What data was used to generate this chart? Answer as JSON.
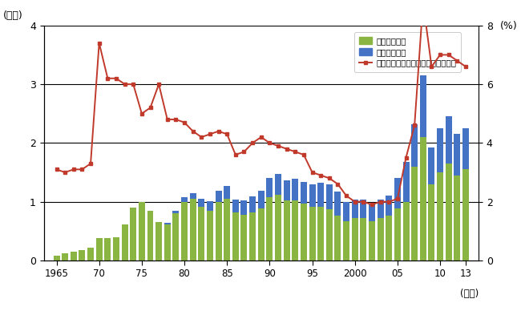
{
  "years": [
    1965,
    1966,
    1967,
    1968,
    1969,
    1970,
    1971,
    1972,
    1973,
    1974,
    1975,
    1976,
    1977,
    1978,
    1979,
    1980,
    1981,
    1982,
    1983,
    1984,
    1985,
    1986,
    1987,
    1988,
    1989,
    1990,
    1991,
    1992,
    1993,
    1994,
    1995,
    1996,
    1997,
    1998,
    1999,
    2000,
    2001,
    2002,
    2003,
    2004,
    2005,
    2006,
    2007,
    2008,
    2009,
    2010,
    2011,
    2012,
    2013
  ],
  "coking_coal": [
    0.08,
    0.12,
    0.15,
    0.18,
    0.22,
    0.38,
    0.38,
    0.4,
    0.62,
    0.9,
    1.0,
    0.85,
    0.65,
    0.62,
    0.8,
    1.0,
    1.05,
    0.92,
    0.85,
    1.0,
    1.05,
    0.82,
    0.78,
    0.82,
    0.88,
    1.08,
    1.12,
    1.02,
    1.02,
    0.97,
    0.92,
    0.92,
    0.87,
    0.77,
    0.67,
    0.72,
    0.72,
    0.67,
    0.72,
    0.77,
    0.88,
    1.0,
    1.6,
    2.1,
    1.3,
    1.5,
    1.65,
    1.45,
    1.55
  ],
  "thermal_coal": [
    0.0,
    0.0,
    0.0,
    0.0,
    0.0,
    0.0,
    0.0,
    0.0,
    0.0,
    0.0,
    0.0,
    0.0,
    0.0,
    0.02,
    0.05,
    0.08,
    0.1,
    0.13,
    0.16,
    0.19,
    0.22,
    0.22,
    0.24,
    0.27,
    0.3,
    0.32,
    0.35,
    0.35,
    0.37,
    0.37,
    0.37,
    0.4,
    0.42,
    0.4,
    0.32,
    0.32,
    0.32,
    0.3,
    0.32,
    0.34,
    0.52,
    0.68,
    0.72,
    1.05,
    0.62,
    0.75,
    0.8,
    0.7,
    0.7
  ],
  "ratio": [
    3.1,
    3.0,
    3.1,
    3.1,
    3.3,
    7.4,
    6.2,
    6.2,
    6.0,
    6.0,
    5.0,
    5.2,
    6.0,
    4.8,
    4.8,
    4.7,
    4.4,
    4.2,
    4.3,
    4.4,
    4.3,
    3.6,
    3.7,
    4.0,
    4.2,
    4.0,
    3.9,
    3.8,
    3.7,
    3.6,
    3.0,
    2.9,
    2.8,
    2.6,
    2.2,
    2.0,
    2.0,
    1.9,
    2.0,
    2.0,
    2.1,
    3.5,
    4.6,
    8.8,
    6.6,
    7.0,
    7.0,
    6.8,
    6.6
  ],
  "coking_color": "#8ab543",
  "thermal_color": "#4472c4",
  "ratio_color": "#c0392b",
  "ylabel_left": "(兆円)",
  "ylabel_right": "(%)",
  "xlabel": "(年度)",
  "ylim_left": [
    0,
    4
  ],
  "ylim_right": [
    0,
    8
  ],
  "yticks_left": [
    0,
    1,
    2,
    3,
    4
  ],
  "yticks_right": [
    0,
    2,
    4,
    6,
    8
  ],
  "xtick_vals": [
    1965,
    1970,
    1975,
    1980,
    1985,
    1990,
    1995,
    2000,
    2005,
    2010,
    2013
  ],
  "xtick_labels": [
    "1965",
    "70",
    "75",
    "80",
    "85",
    "90",
    "95",
    "2000",
    "05",
    "10",
    "13"
  ],
  "legend_coking": "原料炭輸入額",
  "legend_thermal": "一般炭輸入額",
  "legend_ratio": "総輸入額に占める石炭輸入額の割合",
  "bg_color": "#ffffff"
}
